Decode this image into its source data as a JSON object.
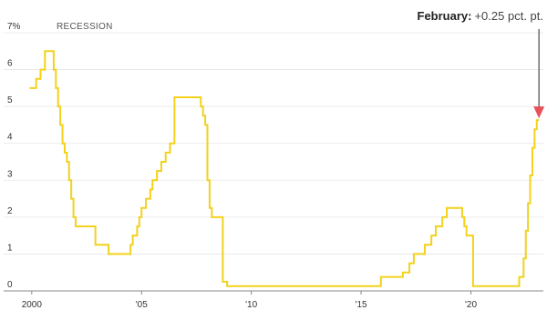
{
  "chart_data": {
    "type": "line",
    "title": "",
    "xlabel": "",
    "ylabel": "",
    "legend": {
      "label": "RECESSION",
      "placement": "top-left"
    },
    "y_tick_labels": [
      "0",
      "1",
      "2",
      "3",
      "4",
      "5",
      "6",
      "7%"
    ],
    "y_ticks": [
      0,
      1,
      2,
      3,
      4,
      5,
      6,
      7
    ],
    "x_tick_labels": [
      "2000",
      "'05",
      "'10",
      "'15",
      "'20"
    ],
    "x_ticks": [
      2000,
      2005,
      2010,
      2015,
      2020
    ],
    "xlim": [
      1999.8,
      2023.3
    ],
    "ylim": [
      0,
      7
    ],
    "grid": "horizontal",
    "series": [
      {
        "color": "#f2d21c",
        "step": true,
        "x": [
          1999.9,
          2000.2,
          2000.4,
          2000.6,
          2001.0,
          2001.1,
          2001.2,
          2001.3,
          2001.4,
          2001.5,
          2001.6,
          2001.7,
          2001.8,
          2001.9,
          2002.0,
          2002.9,
          2003.5,
          2004.5,
          2004.6,
          2004.8,
          2004.9,
          2005.0,
          2005.2,
          2005.4,
          2005.5,
          2005.7,
          2005.9,
          2006.1,
          2006.3,
          2006.5,
          2007.7,
          2007.8,
          2007.9,
          2008.0,
          2008.1,
          2008.2,
          2008.3,
          2008.7,
          2008.9,
          2015.9,
          2016.9,
          2017.2,
          2017.4,
          2017.9,
          2018.2,
          2018.4,
          2018.7,
          2018.9,
          2019.6,
          2019.7,
          2019.8,
          2020.1,
          2020.2,
          2022.2,
          2022.4,
          2022.5,
          2022.6,
          2022.7,
          2022.8,
          2022.9,
          2023.0,
          2023.1
        ],
        "values": [
          5.5,
          5.75,
          6.0,
          6.5,
          6.0,
          5.5,
          5.0,
          4.5,
          4.0,
          3.75,
          3.5,
          3.0,
          2.5,
          2.0,
          1.75,
          1.25,
          1.0,
          1.25,
          1.5,
          1.75,
          2.0,
          2.25,
          2.5,
          2.75,
          3.0,
          3.25,
          3.5,
          3.75,
          4.0,
          5.25,
          5.0,
          4.75,
          4.5,
          3.0,
          2.25,
          2.0,
          2.0,
          0.25,
          0.13,
          0.38,
          0.5,
          0.75,
          1.0,
          1.25,
          1.5,
          1.75,
          2.0,
          2.25,
          2.0,
          1.75,
          1.5,
          0.13,
          0.13,
          0.38,
          0.88,
          1.63,
          2.38,
          3.13,
          3.88,
          4.38,
          4.63,
          4.63
        ]
      }
    ],
    "annotation": {
      "label": "February:",
      "text": "+0.25 pct. pt.",
      "x": 2023.1,
      "y": 4.63,
      "arrow_color": "#e8525a"
    }
  }
}
